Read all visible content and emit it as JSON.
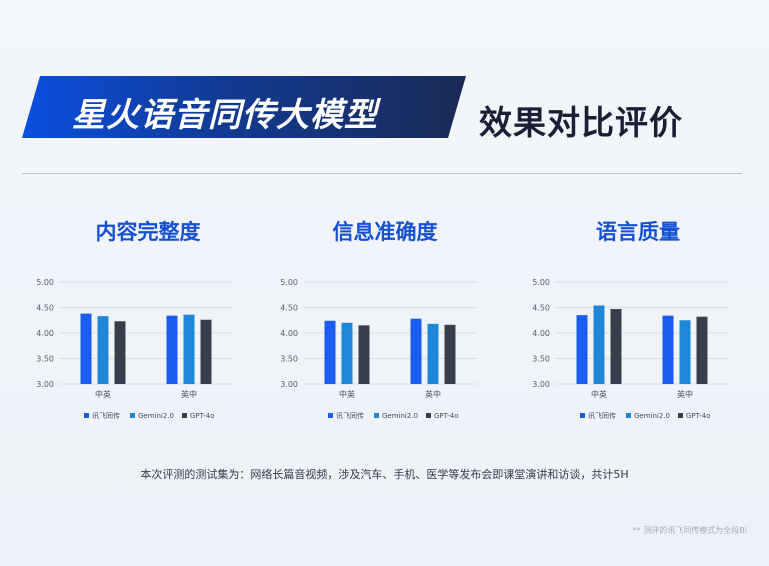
{
  "header": {
    "banner_title": "星火语音同传大模型",
    "page_title": "效果对比评价"
  },
  "footnote": "本次评测的测试集为：网络长篇音视频，涉及汽车、手机、医学等发布会即课堂演讲和访谈，共计5H",
  "side_note": "** 测评的讯飞同传模式为全段Bi",
  "colors": {
    "讯飞同传": "#1a5cf0",
    "Gemini2.0": "#1e88d6",
    "GPT-4o": "#373e4c"
  },
  "chart_data": [
    {
      "type": "bar",
      "title": "内容完整度",
      "categories": [
        "中英",
        "英中"
      ],
      "ylim": [
        3.0,
        5.0
      ],
      "yticks": [
        "5.00",
        "4.50",
        "4.00",
        "3.50",
        "3.00"
      ],
      "grid": true,
      "legend": "bottom",
      "series": [
        {
          "name": "讯飞同传",
          "values": [
            4.38,
            4.34
          ]
        },
        {
          "name": "Gemini2.0",
          "values": [
            4.33,
            4.36
          ]
        },
        {
          "name": "GPT-4o",
          "values": [
            4.23,
            4.26
          ]
        }
      ]
    },
    {
      "type": "bar",
      "title": "信息准确度",
      "categories": [
        "中英",
        "英中"
      ],
      "ylim": [
        3.0,
        5.0
      ],
      "yticks": [
        "5.00",
        "4.50",
        "4.00",
        "3.50",
        "3.00"
      ],
      "grid": true,
      "legend": "bottom",
      "series": [
        {
          "name": "讯飞同传",
          "values": [
            4.24,
            4.28
          ]
        },
        {
          "name": "Gemini2.0",
          "values": [
            4.2,
            4.18
          ]
        },
        {
          "name": "GPT-4o",
          "values": [
            4.15,
            4.16
          ]
        }
      ]
    },
    {
      "type": "bar",
      "title": "语言质量",
      "categories": [
        "中英",
        "英中"
      ],
      "ylim": [
        3.0,
        5.0
      ],
      "yticks": [
        "5.00",
        "4.50",
        "4.00",
        "3.50",
        "3.00"
      ],
      "grid": true,
      "legend": "bottom",
      "series": [
        {
          "name": "讯飞同传",
          "values": [
            4.35,
            4.34
          ]
        },
        {
          "name": "Gemini2.0",
          "values": [
            4.54,
            4.25
          ]
        },
        {
          "name": "GPT-4o",
          "values": [
            4.47,
            4.32
          ]
        }
      ]
    }
  ]
}
